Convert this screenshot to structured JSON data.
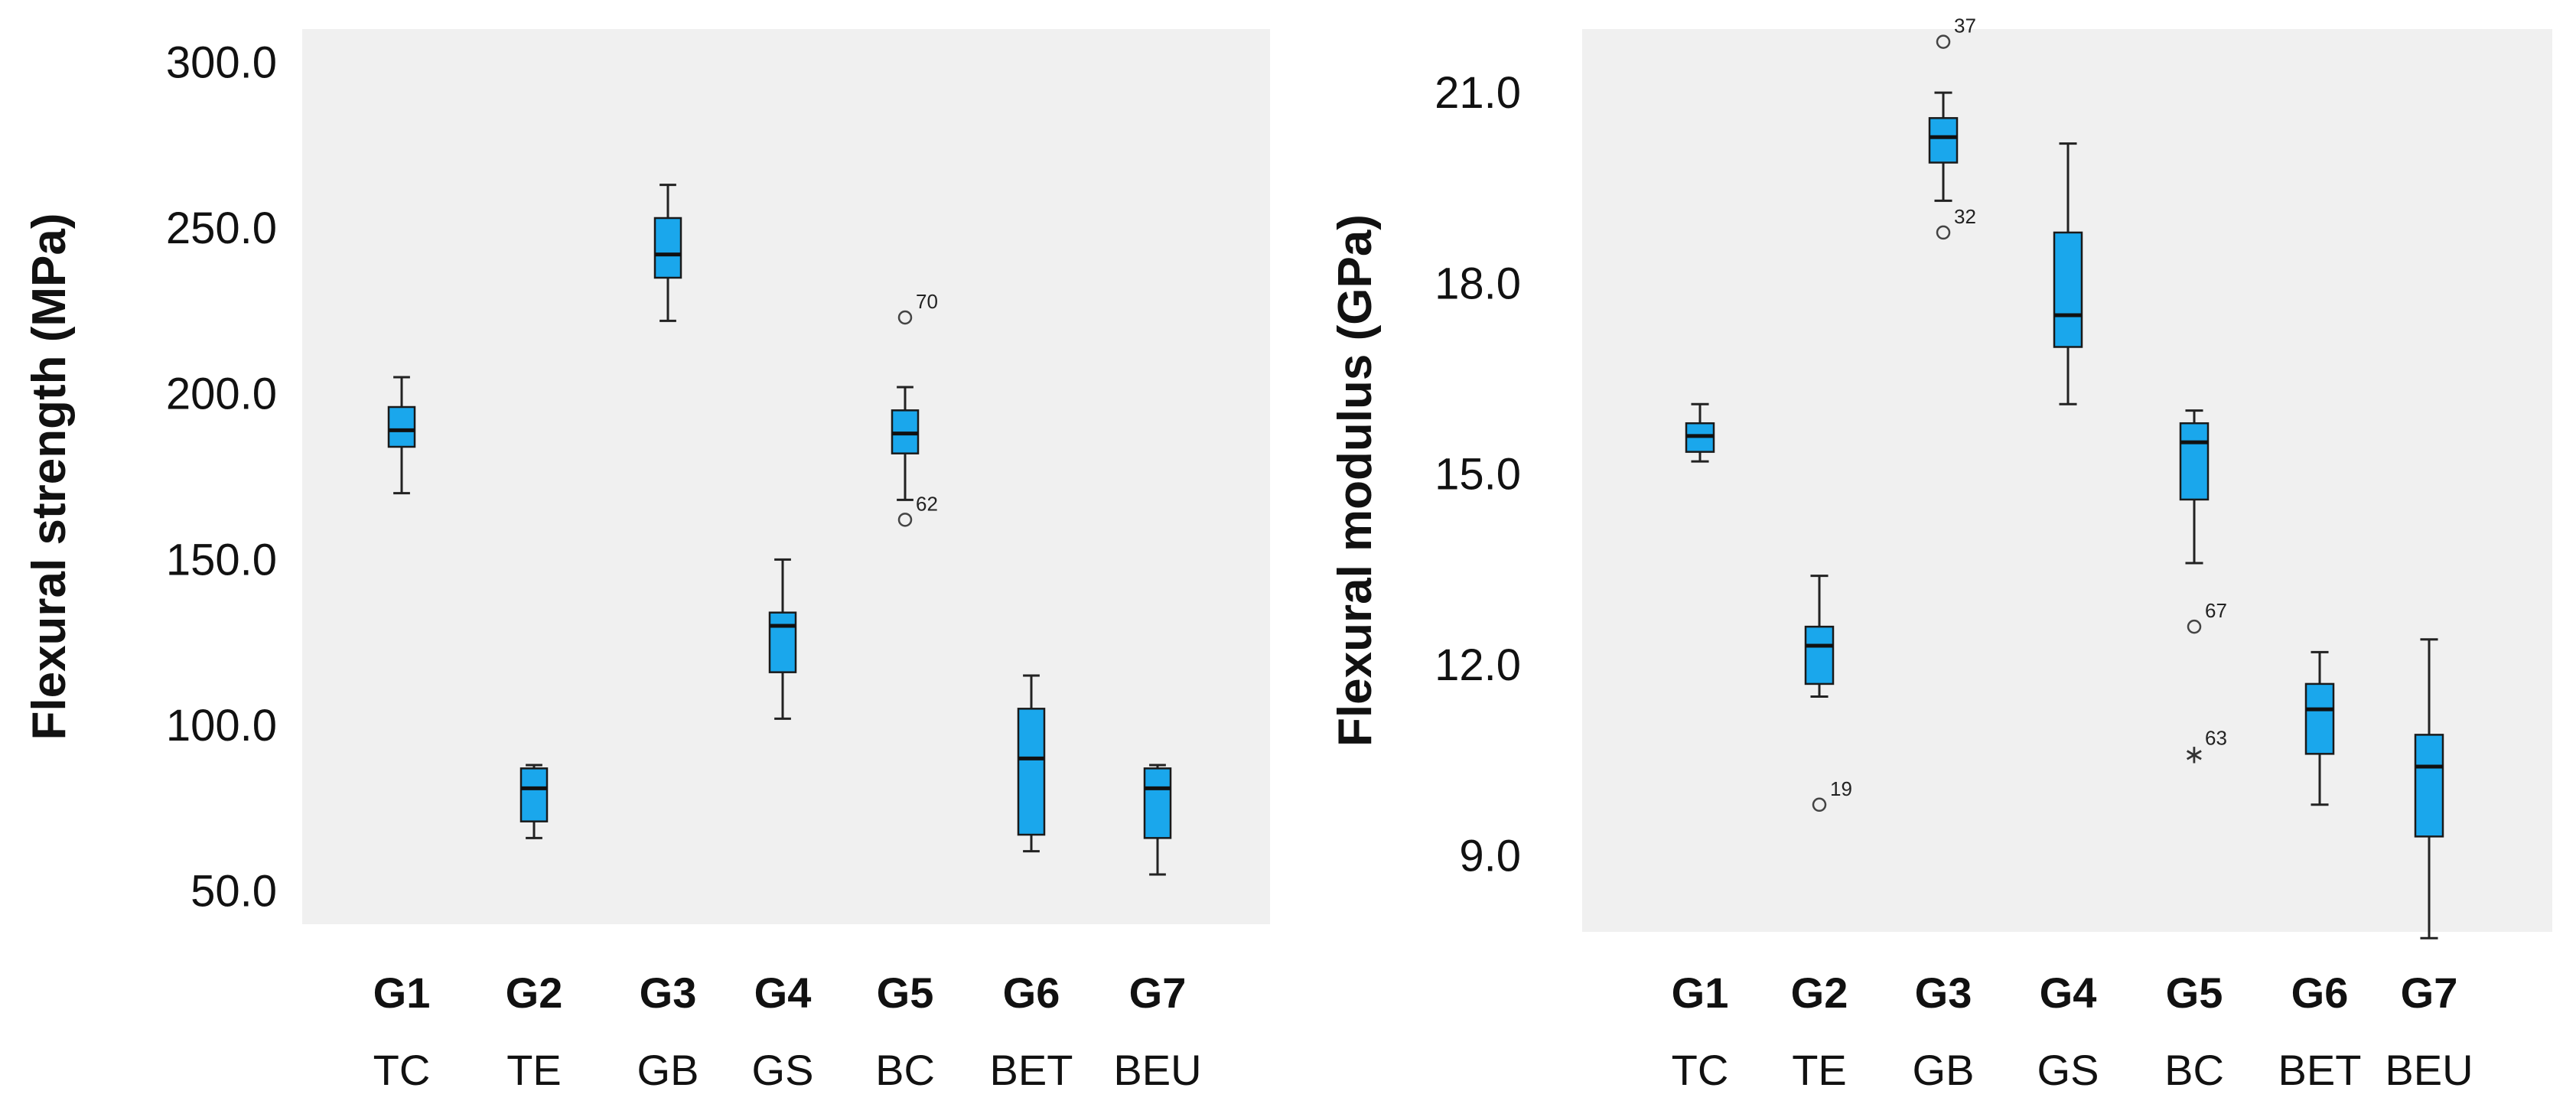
{
  "box_color": "#1aa7ec",
  "plot_bg": "#f0f0f0",
  "chart_data": [
    {
      "type": "box",
      "title": "",
      "xlabel": "",
      "ylabel": "Flexural strength (MPa)",
      "ylim": [
        40,
        310
      ],
      "yticks": [
        "50.0",
        "100.0",
        "150.0",
        "200.0",
        "250.0",
        "300.0"
      ],
      "groups": [
        {
          "code": "G1",
          "name": "TC",
          "min": 170,
          "q1": 184,
          "median": 189,
          "q3": 196,
          "max": 205,
          "outliers": []
        },
        {
          "code": "G2",
          "name": "TE",
          "min": 66,
          "q1": 71,
          "median": 81,
          "q3": 87,
          "max": 88,
          "outliers": []
        },
        {
          "code": "G3",
          "name": "GB",
          "min": 222,
          "q1": 235,
          "median": 242,
          "q3": 253,
          "max": 263,
          "outliers": []
        },
        {
          "code": "G4",
          "name": "GS",
          "min": 102,
          "q1": 116,
          "median": 130,
          "q3": 134,
          "max": 150,
          "outliers": []
        },
        {
          "code": "G5",
          "name": "BC",
          "min": 168,
          "q1": 182,
          "median": 188,
          "q3": 195,
          "max": 202,
          "outliers": [
            {
              "value": 223,
              "label": "70",
              "marker": "circle"
            },
            {
              "value": 162,
              "label": "62",
              "marker": "circle"
            }
          ]
        },
        {
          "code": "G6",
          "name": "BET",
          "min": 62,
          "q1": 67,
          "median": 90,
          "q3": 105,
          "max": 115,
          "outliers": []
        },
        {
          "code": "G7",
          "name": "BEU",
          "min": 55,
          "q1": 66,
          "median": 81,
          "q3": 87,
          "max": 88,
          "outliers": []
        }
      ]
    },
    {
      "type": "box",
      "title": "",
      "xlabel": "",
      "ylabel": "Flexural modulus (GPa)",
      "ylim": [
        7.8,
        22.0
      ],
      "yticks": [
        "9.0",
        "12.0",
        "15.0",
        "18.0",
        "21.0"
      ],
      "groups": [
        {
          "code": "G1",
          "name": "TC",
          "min": 15.2,
          "q1": 15.35,
          "median": 15.6,
          "q3": 15.8,
          "max": 16.1,
          "outliers": []
        },
        {
          "code": "G2",
          "name": "TE",
          "min": 11.5,
          "q1": 11.7,
          "median": 12.3,
          "q3": 12.6,
          "max": 13.4,
          "outliers": [
            {
              "value": 9.8,
              "label": "19",
              "marker": "circle"
            }
          ]
        },
        {
          "code": "G3",
          "name": "GB",
          "min": 19.3,
          "q1": 19.9,
          "median": 20.3,
          "q3": 20.6,
          "max": 21.0,
          "outliers": [
            {
              "value": 21.8,
              "label": "37",
              "marker": "circle"
            },
            {
              "value": 18.8,
              "label": "32",
              "marker": "circle"
            }
          ]
        },
        {
          "code": "G4",
          "name": "GS",
          "min": 16.1,
          "q1": 17.0,
          "median": 17.5,
          "q3": 18.8,
          "max": 20.2,
          "outliers": []
        },
        {
          "code": "G5",
          "name": "BC",
          "min": 13.6,
          "q1": 14.6,
          "median": 15.5,
          "q3": 15.8,
          "max": 16.0,
          "outliers": [
            {
              "value": 12.6,
              "label": "67",
              "marker": "circle"
            },
            {
              "value": 10.6,
              "label": "63",
              "marker": "star"
            }
          ]
        },
        {
          "code": "G6",
          "name": "BET",
          "min": 9.8,
          "q1": 10.6,
          "median": 11.3,
          "q3": 11.7,
          "max": 12.2,
          "outliers": []
        },
        {
          "code": "G7",
          "name": "BEU",
          "min": 7.7,
          "q1": 9.3,
          "median": 10.4,
          "q3": 10.9,
          "max": 12.4,
          "outliers": []
        }
      ]
    }
  ]
}
